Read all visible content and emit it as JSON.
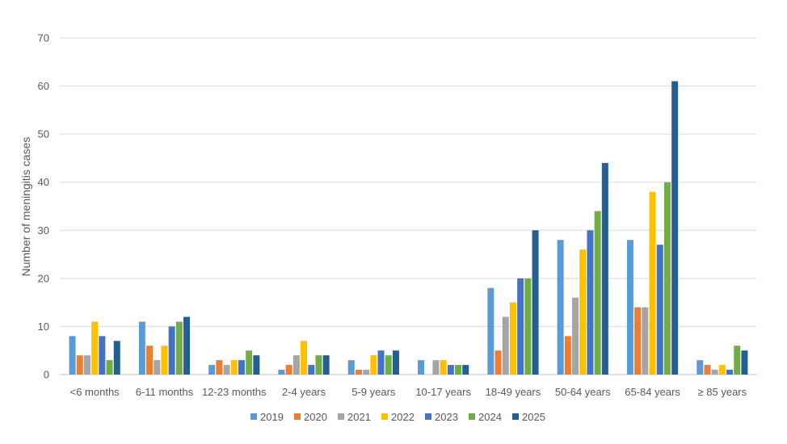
{
  "chart_data": {
    "type": "bar",
    "title": "",
    "xlabel": "",
    "ylabel": "Number of meningitis cases",
    "ylim": [
      0,
      70
    ],
    "yticks": [
      0,
      10,
      20,
      30,
      40,
      50,
      60,
      70
    ],
    "grid": true,
    "legend_position": "bottom",
    "categories": [
      "<6 months",
      "6-11 months",
      "12-23 months",
      "2-4 years",
      "5-9 years",
      "10-17 years",
      "18-49 years",
      "50-64 years",
      "65-84 years",
      "≥ 85 years"
    ],
    "series": [
      {
        "name": "2019",
        "color": "#5b9bd5",
        "values": [
          8,
          11,
          2,
          1,
          3,
          3,
          18,
          28,
          28,
          3
        ]
      },
      {
        "name": "2020",
        "color": "#ed7d31",
        "values": [
          4,
          6,
          3,
          2,
          1,
          0,
          5,
          8,
          14,
          2
        ]
      },
      {
        "name": "2021",
        "color": "#a5a5a5",
        "values": [
          4,
          3,
          2,
          4,
          1,
          3,
          12,
          16,
          14,
          1
        ]
      },
      {
        "name": "2022",
        "color": "#ffc000",
        "values": [
          11,
          6,
          3,
          7,
          4,
          3,
          15,
          26,
          38,
          2
        ]
      },
      {
        "name": "2023",
        "color": "#4472c4",
        "values": [
          8,
          10,
          3,
          2,
          5,
          2,
          20,
          30,
          27,
          1
        ]
      },
      {
        "name": "2024",
        "color": "#70ad47",
        "values": [
          3,
          11,
          5,
          4,
          4,
          2,
          20,
          34,
          40,
          6
        ]
      },
      {
        "name": "2025",
        "color": "#255e91",
        "values": [
          7,
          12,
          4,
          4,
          5,
          2,
          30,
          44,
          61,
          5
        ]
      }
    ]
  }
}
